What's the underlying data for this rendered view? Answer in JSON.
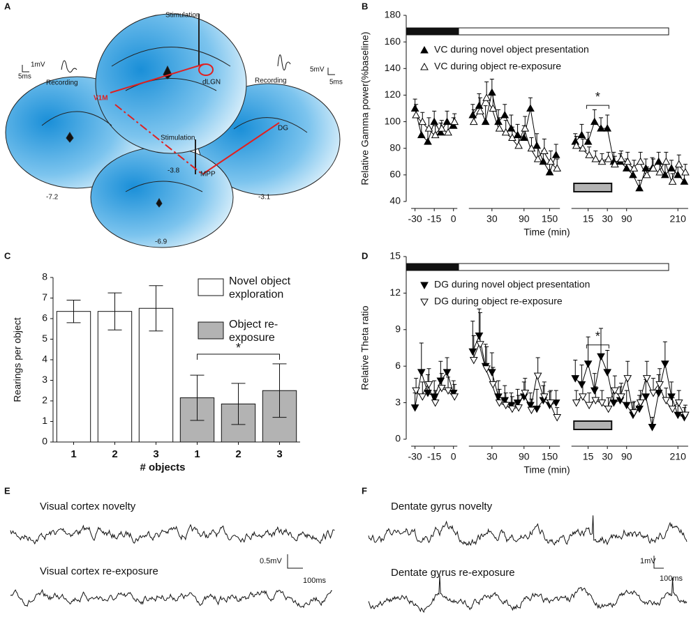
{
  "panel_labels": [
    "A",
    "B",
    "C",
    "D",
    "E",
    "F"
  ],
  "diagram": {
    "labels": [
      "Stimulation",
      "1mV",
      "5ms",
      "Recording",
      "V1M",
      "dLGN",
      "-3.8",
      "Recording",
      "5mV",
      "5ms",
      "Stimulation",
      "DG",
      "MPP",
      "-7.2",
      "-3.1",
      "-6.9"
    ]
  },
  "chart_data": [
    {
      "type": "line",
      "xlabel": "Time (min)",
      "ylabel": "Relative Gamma power(%baseline)",
      "annotation": "*",
      "legend": "upper left",
      "categories": [
        "-30",
        null,
        null,
        "-15",
        null,
        null,
        "0",
        null,
        null,
        null,
        null,
        null,
        "30",
        null,
        null,
        null,
        null,
        "90",
        null,
        null,
        null,
        "150",
        null,
        null,
        null,
        null,
        null,
        "15",
        null,
        null,
        "30",
        null,
        null,
        "90",
        null,
        null,
        null,
        null,
        null,
        null,
        null,
        "210",
        null
      ],
      "ylim": [
        40,
        180
      ],
      "yticks": [
        40,
        60,
        80,
        100,
        120,
        140,
        160,
        180
      ],
      "series": [
        {
          "name": "VC during novel object presentation",
          "color": "#000000",
          "marker": "triangle-up",
          "filled": true,
          "values": [
            110,
            90,
            85,
            100,
            92,
            100,
            97,
            null,
            null,
            105,
            112,
            100,
            122,
            100,
            105,
            95,
            90,
            88,
            110,
            82,
            70,
            62,
            75,
            null,
            null,
            85,
            90,
            85,
            100,
            95,
            95,
            70,
            70,
            65,
            60,
            50,
            65,
            65,
            70,
            60,
            65,
            60,
            55
          ],
          "errors": [
            7,
            8,
            9,
            8,
            7,
            8,
            6,
            null,
            null,
            8,
            9,
            12,
            10,
            9,
            8,
            10,
            8,
            9,
            8,
            9,
            8,
            7,
            8,
            null,
            null,
            6,
            8,
            7,
            9,
            8,
            10,
            7,
            6,
            7,
            6,
            6,
            7,
            8,
            7,
            8,
            6,
            7,
            6
          ]
        },
        {
          "name": "VC during object re-exposure",
          "color": "#000000",
          "marker": "triangle-up",
          "filled": false,
          "values": [
            105,
            100,
            95,
            90,
            95,
            92,
            100,
            null,
            null,
            100,
            108,
            118,
            110,
            95,
            92,
            88,
            82,
            95,
            80,
            72,
            78,
            70,
            65,
            null,
            null,
            82,
            80,
            75,
            72,
            70,
            72,
            68,
            72,
            70,
            65,
            70,
            60,
            65,
            62,
            70,
            55,
            68,
            62
          ],
          "errors": [
            8,
            7,
            8,
            7,
            6,
            7,
            6,
            null,
            null,
            9,
            10,
            12,
            11,
            8,
            9,
            8,
            7,
            9,
            8,
            8,
            9,
            8,
            7,
            null,
            null,
            7,
            7,
            6,
            6,
            6,
            5,
            6,
            6,
            7,
            6,
            7,
            6,
            7,
            6,
            7,
            6,
            7,
            6
          ]
        }
      ]
    },
    {
      "type": "bar",
      "xlabel": "# objects",
      "ylabel": "Rearings per object",
      "annotation": "*",
      "legend": "upper right",
      "categories": [
        "1",
        "2",
        "3",
        "1",
        "2",
        "3"
      ],
      "ylim": [
        0,
        8
      ],
      "yticks": [
        0,
        1,
        2,
        3,
        4,
        5,
        6,
        7,
        8
      ],
      "series": [
        {
          "name": "Novel object exploration",
          "color": "#ffffff",
          "values": [
            6.35,
            6.35,
            6.5,
            null,
            null,
            null
          ],
          "errors": [
            0.55,
            0.9,
            1.1,
            null,
            null,
            null
          ]
        },
        {
          "name": "Object re-exposure",
          "color": "#b3b3b3",
          "values": [
            null,
            null,
            null,
            2.15,
            1.85,
            2.5
          ],
          "errors": [
            null,
            null,
            null,
            1.1,
            1.0,
            1.3
          ]
        }
      ]
    },
    {
      "type": "line",
      "xlabel": "Time (min)",
      "ylabel": "Relative Theta ratio",
      "annotation": "*",
      "legend": "upper left",
      "categories": [
        "-30",
        null,
        null,
        "-15",
        null,
        null,
        "0",
        null,
        null,
        null,
        null,
        null,
        "30",
        null,
        null,
        null,
        null,
        "90",
        null,
        null,
        null,
        "150",
        null,
        null,
        null,
        null,
        null,
        "15",
        null,
        null,
        "30",
        null,
        null,
        "90",
        null,
        null,
        null,
        null,
        null,
        null,
        null,
        "210",
        null
      ],
      "ylim": [
        0,
        15
      ],
      "yticks": [
        0,
        3,
        6,
        9,
        12,
        15
      ],
      "series": [
        {
          "name": "DG during novel object presentation",
          "color": "#000000",
          "marker": "triangle-down",
          "filled": true,
          "values": [
            2.6,
            5.5,
            3.8,
            3.5,
            4.8,
            5.5,
            3.8,
            null,
            null,
            7.2,
            8.5,
            6.0,
            5.5,
            3.5,
            3.2,
            2.8,
            3.0,
            3.5,
            2.8,
            2.5,
            3.2,
            2.8,
            3.0,
            null,
            null,
            5.0,
            4.5,
            6.2,
            4.0,
            6.8,
            5.5,
            3.0,
            3.2,
            2.8,
            2.0,
            2.5,
            3.5,
            1.0,
            3.8,
            6.2,
            3.5,
            2.0,
            1.8
          ],
          "errors": [
            1.2,
            2.4,
            1.5,
            1.3,
            1.6,
            1.2,
            1.0,
            null,
            null,
            2.5,
            2.2,
            1.8,
            1.6,
            1.3,
            1.2,
            1.0,
            1.1,
            1.2,
            1.0,
            1.6,
            1.2,
            1.1,
            1.0,
            null,
            null,
            1.5,
            1.6,
            2.2,
            1.4,
            2.3,
            1.8,
            1.2,
            1.1,
            1.2,
            1.0,
            1.1,
            1.4,
            0.8,
            1.5,
            1.8,
            1.2,
            1.0,
            0.8
          ]
        },
        {
          "name": "DG during object re-exposure",
          "color": "#000000",
          "marker": "triangle-down",
          "filled": false,
          "values": [
            4.0,
            3.5,
            4.5,
            3.0,
            4.2,
            4.0,
            3.5,
            null,
            null,
            6.5,
            7.8,
            5.8,
            4.5,
            3.0,
            2.8,
            2.5,
            2.6,
            3.8,
            2.4,
            5.2,
            3.5,
            3.0,
            1.8,
            null,
            null,
            3.0,
            3.5,
            2.8,
            3.2,
            3.0,
            2.5,
            4.0,
            3.5,
            5.0,
            2.2,
            3.0,
            5.0,
            3.8,
            4.5,
            3.2,
            2.5,
            3.0,
            2.0
          ],
          "errors": [
            1.0,
            1.2,
            1.3,
            1.0,
            1.2,
            1.1,
            1.0,
            null,
            null,
            2.0,
            2.6,
            1.8,
            1.4,
            1.1,
            1.0,
            1.0,
            1.0,
            1.2,
            0.9,
            1.5,
            1.2,
            1.0,
            0.8,
            null,
            null,
            1.0,
            1.1,
            1.0,
            1.1,
            1.0,
            0.9,
            1.2,
            1.1,
            1.4,
            0.9,
            1.0,
            1.4,
            1.2,
            1.3,
            1.0,
            0.9,
            1.0,
            0.8
          ]
        }
      ]
    }
  ],
  "traces": {
    "E": {
      "titles": [
        "Visual cortex novelty",
        "Visual cortex re-exposure"
      ],
      "scale": [
        "0.5mV",
        "100ms"
      ]
    },
    "F": {
      "titles": [
        "Dentate gyrus novelty",
        "Dentate gyrus re-exposure"
      ],
      "scale": [
        "1mV",
        "100ms"
      ]
    }
  }
}
